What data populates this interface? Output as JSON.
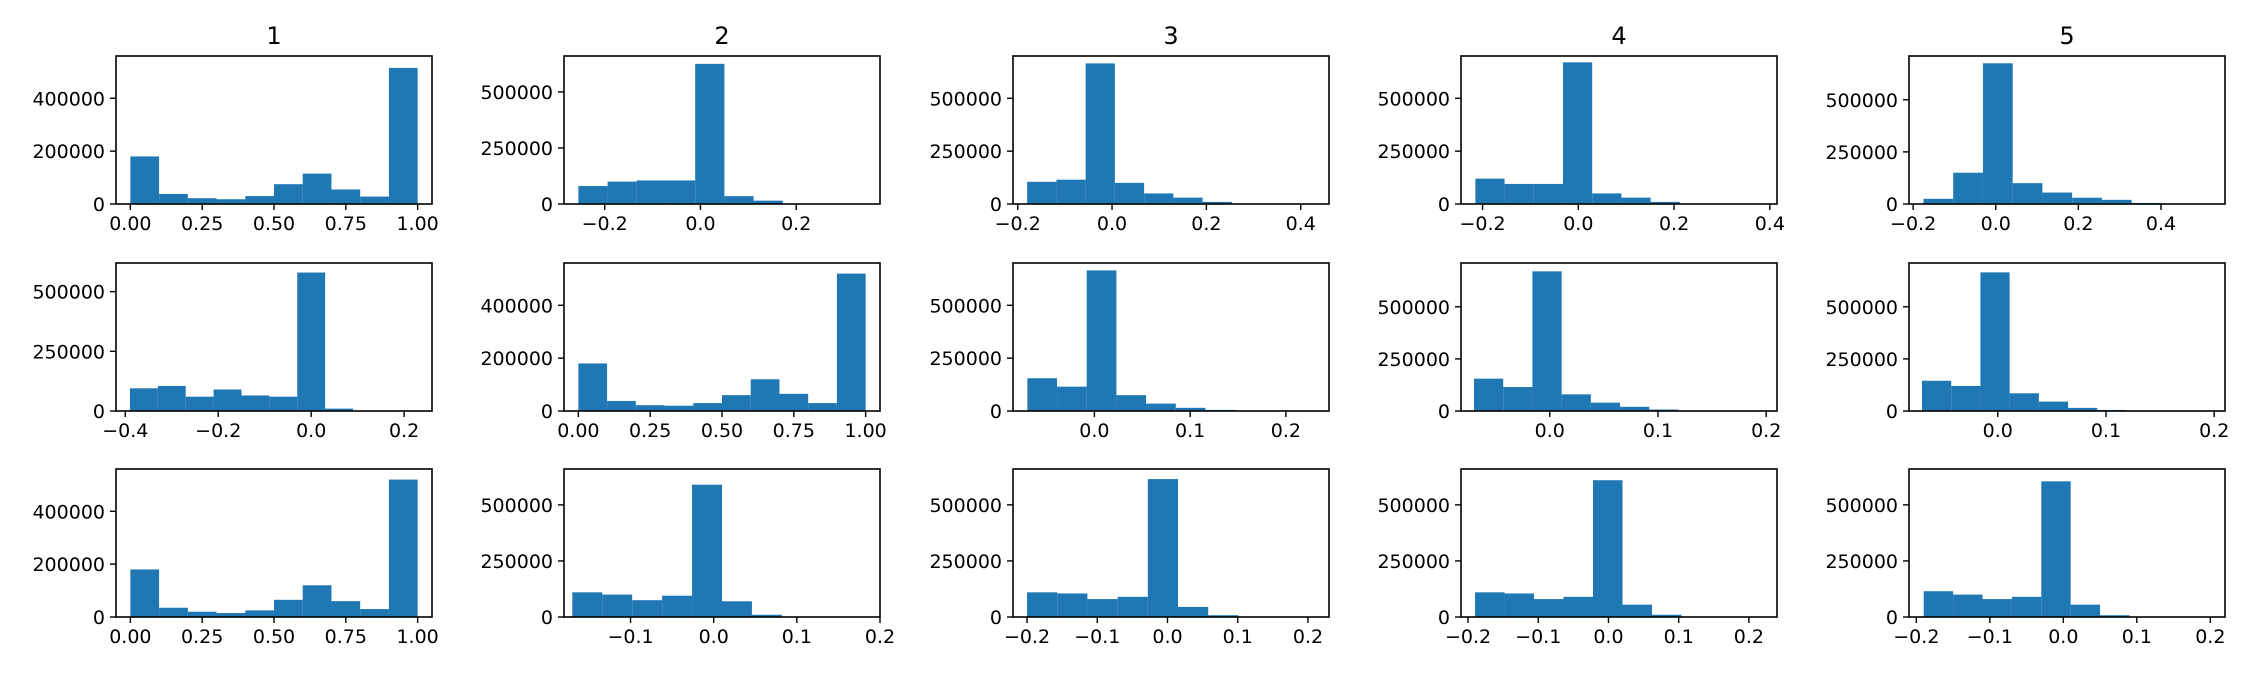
{
  "figure": {
    "column_titles": [
      "1",
      "2",
      "3",
      "4",
      "5"
    ]
  },
  "colors": {
    "bar": "#1f77b4",
    "axes": "#000000",
    "background": "#ffffff"
  },
  "chart_data": [
    {
      "type": "histogram",
      "row": 1,
      "col": 1,
      "title": "1",
      "xlim": [
        -0.05,
        1.05
      ],
      "ylim": [
        0,
        560000
      ],
      "xticks": [
        0.0,
        0.25,
        0.5,
        0.75,
        1.0
      ],
      "xtick_labels": [
        "0.00",
        "0.25",
        "0.50",
        "0.75",
        "1.00"
      ],
      "yticks": [
        0,
        200000,
        400000
      ],
      "ytick_labels": [
        "0",
        "200000",
        "400000"
      ],
      "bins": [
        0,
        0.1,
        0.2,
        0.3,
        0.4,
        0.5,
        0.6,
        0.7,
        0.8,
        0.9,
        1.0
      ],
      "values": [
        180000,
        38000,
        22000,
        18000,
        30000,
        75000,
        115000,
        55000,
        28000,
        515000
      ]
    },
    {
      "type": "histogram",
      "row": 1,
      "col": 2,
      "title": "2",
      "xlim": [
        -0.285,
        0.375
      ],
      "ylim": [
        0,
        660000
      ],
      "xticks": [
        -0.2,
        0.0,
        0.2
      ],
      "xtick_labels": [
        "−0.2",
        "0.0",
        "0.2"
      ],
      "yticks": [
        0,
        250000,
        500000
      ],
      "ytick_labels": [
        "0",
        "250000",
        "500000"
      ],
      "bins": [
        -0.255,
        -0.194,
        -0.133,
        -0.072,
        -0.011,
        0.05,
        0.111,
        0.172,
        0.233,
        0.294,
        0.355
      ],
      "values": [
        80000,
        100000,
        105000,
        105000,
        625000,
        35000,
        15000,
        2000,
        1000,
        500
      ]
    },
    {
      "type": "histogram",
      "row": 1,
      "col": 3,
      "title": "3",
      "xlim": [
        -0.21,
        0.46
      ],
      "ylim": [
        0,
        700000
      ],
      "xticks": [
        -0.2,
        0.0,
        0.2,
        0.4
      ],
      "xtick_labels": [
        "−0.2",
        "0.0",
        "0.2",
        "0.4"
      ],
      "yticks": [
        0,
        250000,
        500000
      ],
      "ytick_labels": [
        "0",
        "250000",
        "500000"
      ],
      "bins": [
        -0.18,
        -0.118,
        -0.056,
        0.006,
        0.068,
        0.13,
        0.192,
        0.254,
        0.316,
        0.378,
        0.44
      ],
      "values": [
        105000,
        115000,
        665000,
        100000,
        50000,
        30000,
        10000,
        2000,
        1000,
        500
      ]
    },
    {
      "type": "histogram",
      "row": 1,
      "col": 4,
      "title": "4",
      "xlim": [
        -0.245,
        0.415
      ],
      "ylim": [
        0,
        700000
      ],
      "xticks": [
        -0.2,
        0.0,
        0.2,
        0.4
      ],
      "xtick_labels": [
        "−0.2",
        "0.0",
        "0.2",
        "0.4"
      ],
      "yticks": [
        0,
        250000,
        500000
      ],
      "ytick_labels": [
        "0",
        "250000",
        "500000"
      ],
      "bins": [
        -0.215,
        -0.154,
        -0.093,
        -0.032,
        0.029,
        0.09,
        0.151,
        0.212,
        0.273,
        0.334,
        0.395
      ],
      "values": [
        120000,
        95000,
        95000,
        670000,
        50000,
        30000,
        10000,
        2000,
        1000,
        500
      ]
    },
    {
      "type": "histogram",
      "row": 1,
      "col": 5,
      "title": "5",
      "xlim": [
        -0.21,
        0.555
      ],
      "ylim": [
        0,
        710000
      ],
      "xticks": [
        -0.2,
        0.0,
        0.2,
        0.4
      ],
      "xtick_labels": [
        "−0.2",
        "0.0",
        "0.2",
        "0.4"
      ],
      "yticks": [
        0,
        250000,
        500000
      ],
      "ytick_labels": [
        "0",
        "250000",
        "500000"
      ],
      "bins": [
        -0.175,
        -0.103,
        -0.031,
        0.041,
        0.113,
        0.185,
        0.257,
        0.329,
        0.401,
        0.473,
        0.545
      ],
      "values": [
        25000,
        150000,
        675000,
        100000,
        55000,
        30000,
        20000,
        5000,
        2000,
        1000
      ]
    },
    {
      "type": "histogram",
      "row": 2,
      "col": 1,
      "title": "",
      "xlim": [
        -0.42,
        0.26
      ],
      "ylim": [
        0,
        620000
      ],
      "xticks": [
        -0.4,
        -0.2,
        0.0,
        0.2
      ],
      "xtick_labels": [
        "−0.4",
        "−0.2",
        "0.0",
        "0.2"
      ],
      "yticks": [
        0,
        250000,
        500000
      ],
      "ytick_labels": [
        "0",
        "250000",
        "500000"
      ],
      "bins": [
        -0.39,
        -0.33,
        -0.27,
        -0.21,
        -0.15,
        -0.09,
        -0.03,
        0.03,
        0.09,
        0.15,
        0.21
      ],
      "values": [
        95000,
        105000,
        60000,
        90000,
        65000,
        60000,
        580000,
        10000,
        2000,
        500
      ]
    },
    {
      "type": "histogram",
      "row": 2,
      "col": 2,
      "title": "",
      "xlim": [
        -0.05,
        1.05
      ],
      "ylim": [
        0,
        560000
      ],
      "xticks": [
        0.0,
        0.25,
        0.5,
        0.75,
        1.0
      ],
      "xtick_labels": [
        "0.00",
        "0.25",
        "0.50",
        "0.75",
        "1.00"
      ],
      "yticks": [
        0,
        200000,
        400000
      ],
      "ytick_labels": [
        "0",
        "200000",
        "400000"
      ],
      "bins": [
        0,
        0.1,
        0.2,
        0.3,
        0.4,
        0.5,
        0.6,
        0.7,
        0.8,
        0.9,
        1.0
      ],
      "values": [
        180000,
        38000,
        22000,
        20000,
        30000,
        60000,
        120000,
        65000,
        30000,
        520000
      ]
    },
    {
      "type": "histogram",
      "row": 2,
      "col": 3,
      "title": "",
      "xlim": [
        -0.085,
        0.245
      ],
      "ylim": [
        0,
        700000
      ],
      "xticks": [
        0.0,
        0.1,
        0.2
      ],
      "xtick_labels": [
        "0.0",
        "0.1",
        "0.2"
      ],
      "yticks": [
        0,
        250000,
        500000
      ],
      "ytick_labels": [
        "0",
        "250000",
        "500000"
      ],
      "bins": [
        -0.07,
        -0.039,
        -0.008,
        0.023,
        0.054,
        0.085,
        0.116,
        0.147,
        0.178,
        0.209,
        0.24
      ],
      "values": [
        155000,
        115000,
        665000,
        75000,
        35000,
        15000,
        5000,
        2000,
        1000,
        500
      ]
    },
    {
      "type": "histogram",
      "row": 2,
      "col": 4,
      "title": "",
      "xlim": [
        -0.082,
        0.21
      ],
      "ylim": [
        0,
        710000
      ],
      "xticks": [
        0.0,
        0.1,
        0.2
      ],
      "xtick_labels": [
        "0.0",
        "0.1",
        "0.2"
      ],
      "yticks": [
        0,
        250000,
        500000
      ],
      "ytick_labels": [
        "0",
        "250000",
        "500000"
      ],
      "bins": [
        -0.07,
        -0.043,
        -0.016,
        0.011,
        0.038,
        0.065,
        0.092,
        0.119,
        0.146,
        0.173,
        0.2
      ],
      "values": [
        155000,
        115000,
        670000,
        80000,
        40000,
        20000,
        7000,
        2000,
        1000,
        500
      ]
    },
    {
      "type": "histogram",
      "row": 2,
      "col": 5,
      "title": "",
      "xlim": [
        -0.082,
        0.21
      ],
      "ylim": [
        0,
        710000
      ],
      "xticks": [
        0.0,
        0.1,
        0.2
      ],
      "xtick_labels": [
        "0.0",
        "0.1",
        "0.2"
      ],
      "yticks": [
        0,
        250000,
        500000
      ],
      "ytick_labels": [
        "0",
        "250000",
        "500000"
      ],
      "bins": [
        -0.07,
        -0.043,
        -0.016,
        0.011,
        0.038,
        0.065,
        0.092,
        0.119,
        0.146,
        0.173,
        0.2
      ],
      "values": [
        145000,
        120000,
        665000,
        85000,
        45000,
        15000,
        5000,
        2000,
        1000,
        500
      ]
    },
    {
      "type": "histogram",
      "row": 3,
      "col": 1,
      "title": "",
      "xlim": [
        -0.05,
        1.05
      ],
      "ylim": [
        0,
        560000
      ],
      "xticks": [
        0.0,
        0.25,
        0.5,
        0.75,
        1.0
      ],
      "xtick_labels": [
        "0.00",
        "0.25",
        "0.50",
        "0.75",
        "1.00"
      ],
      "yticks": [
        0,
        200000,
        400000
      ],
      "ytick_labels": [
        "0",
        "200000",
        "400000"
      ],
      "bins": [
        0,
        0.1,
        0.2,
        0.3,
        0.4,
        0.5,
        0.6,
        0.7,
        0.8,
        0.9,
        1.0
      ],
      "values": [
        180000,
        35000,
        20000,
        15000,
        25000,
        65000,
        120000,
        60000,
        30000,
        520000
      ]
    },
    {
      "type": "histogram",
      "row": 3,
      "col": 2,
      "title": "",
      "xlim": [
        -0.18,
        0.2
      ],
      "ylim": [
        0,
        660000
      ],
      "xticks": [
        -0.1,
        0.0,
        0.1,
        0.2
      ],
      "xtick_labels": [
        "−0.1",
        "0.0",
        "0.1",
        "0.2"
      ],
      "yticks": [
        0,
        250000,
        500000
      ],
      "ytick_labels": [
        "0",
        "250000",
        "500000"
      ],
      "bins": [
        -0.17,
        -0.134,
        -0.098,
        -0.062,
        -0.026,
        0.01,
        0.046,
        0.082,
        0.118,
        0.154,
        0.19
      ],
      "values": [
        110000,
        100000,
        75000,
        95000,
        590000,
        70000,
        10000,
        2000,
        1000,
        500
      ]
    },
    {
      "type": "histogram",
      "row": 3,
      "col": 3,
      "title": "",
      "xlim": [
        -0.22,
        0.23
      ],
      "ylim": [
        0,
        660000
      ],
      "xticks": [
        -0.2,
        -0.1,
        0.0,
        0.1,
        0.2
      ],
      "xtick_labels": [
        "−0.2",
        "−0.1",
        "0.0",
        "0.1",
        "0.2"
      ],
      "yticks": [
        0,
        250000,
        500000
      ],
      "ytick_labels": [
        "0",
        "250000",
        "500000"
      ],
      "bins": [
        -0.2,
        -0.157,
        -0.114,
        -0.071,
        -0.028,
        0.015,
        0.058,
        0.101,
        0.144,
        0.187,
        0.23
      ],
      "values": [
        110000,
        105000,
        80000,
        90000,
        615000,
        45000,
        8000,
        2000,
        1000,
        500
      ]
    },
    {
      "type": "histogram",
      "row": 3,
      "col": 4,
      "title": "",
      "xlim": [
        -0.21,
        0.24
      ],
      "ylim": [
        0,
        660000
      ],
      "xticks": [
        -0.2,
        -0.1,
        0.0,
        0.1,
        0.2
      ],
      "xtick_labels": [
        "−0.2",
        "−0.1",
        "0.0",
        "0.1",
        "0.2"
      ],
      "yticks": [
        0,
        250000,
        500000
      ],
      "ytick_labels": [
        "0",
        "250000",
        "500000"
      ],
      "bins": [
        -0.19,
        -0.148,
        -0.106,
        -0.064,
        -0.022,
        0.02,
        0.062,
        0.104,
        0.146,
        0.188,
        0.23
      ],
      "values": [
        110000,
        105000,
        80000,
        90000,
        610000,
        55000,
        10000,
        2000,
        1000,
        500
      ]
    },
    {
      "type": "histogram",
      "row": 3,
      "col": 5,
      "title": "",
      "xlim": [
        -0.21,
        0.22
      ],
      "ylim": [
        0,
        660000
      ],
      "xticks": [
        -0.2,
        -0.1,
        0.0,
        0.1,
        0.2
      ],
      "xtick_labels": [
        "−0.2",
        "−0.1",
        "0.0",
        "0.1",
        "0.2"
      ],
      "yticks": [
        0,
        250000,
        500000
      ],
      "ytick_labels": [
        "0",
        "250000",
        "500000"
      ],
      "bins": [
        -0.19,
        -0.15,
        -0.11,
        -0.07,
        -0.03,
        0.01,
        0.05,
        0.09,
        0.13,
        0.17,
        0.21
      ],
      "values": [
        115000,
        100000,
        80000,
        90000,
        605000,
        55000,
        8000,
        2000,
        1000,
        500
      ]
    }
  ]
}
